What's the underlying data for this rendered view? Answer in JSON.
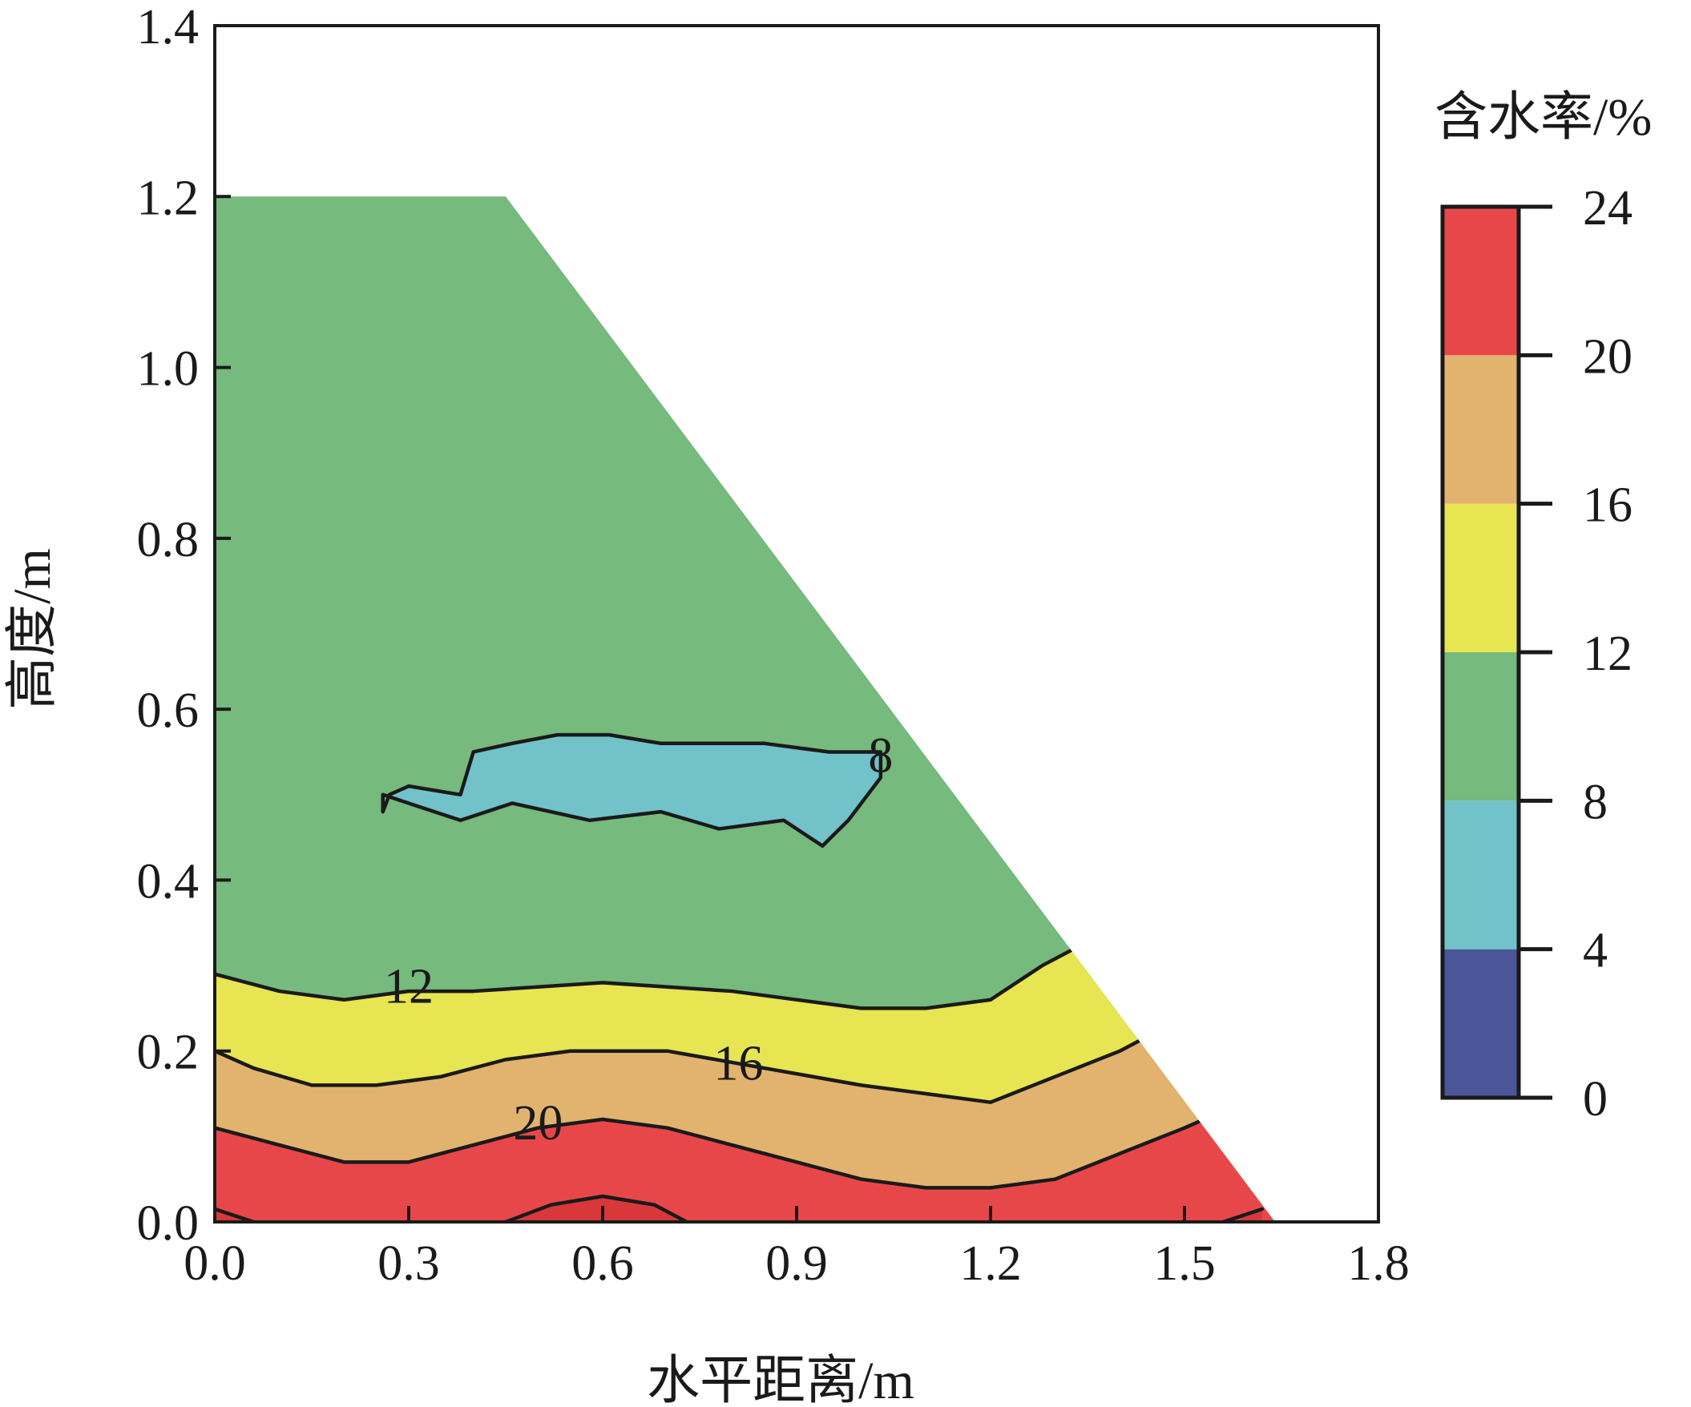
{
  "chart_data": {
    "type": "contour",
    "title": "",
    "xlabel": "水平距离/m",
    "ylabel": "高度/m",
    "xlim": [
      0.0,
      1.8
    ],
    "ylim": [
      0.0,
      1.4
    ],
    "x_ticks": [
      "0.0",
      "0.3",
      "0.6",
      "0.9",
      "1.2",
      "1.5",
      "1.8"
    ],
    "y_ticks": [
      "0.0",
      "0.2",
      "0.4",
      "0.6",
      "0.8",
      "1.0",
      "1.2",
      "1.4"
    ],
    "grid": false,
    "domain_outline": [
      [
        0.0,
        0.0
      ],
      [
        0.0,
        1.2
      ],
      [
        0.45,
        1.2
      ],
      [
        1.64,
        0.0
      ]
    ],
    "colorbar": {
      "title": "含水率/%",
      "levels": [
        0,
        4,
        8,
        12,
        16,
        20,
        24
      ],
      "tick_labels": [
        "0",
        "4",
        "8",
        "12",
        "16",
        "20",
        "24"
      ],
      "colors": [
        "#4a5697",
        "#72c2c9",
        "#76ba7d",
        "#e7e551",
        "#e2b36e",
        "#e8474a"
      ]
    },
    "contour_labels": [
      {
        "text": "8",
        "level": 8,
        "x": 1.03,
        "y": 0.54
      },
      {
        "text": "12",
        "level": 12,
        "x": 0.3,
        "y": 0.27
      },
      {
        "text": "16",
        "level": 16,
        "x": 0.81,
        "y": 0.18
      },
      {
        "text": "20",
        "level": 20,
        "x": 0.5,
        "y": 0.11
      }
    ],
    "contours": [
      {
        "level": 8,
        "points": [
          [
            0.26,
            0.48
          ],
          [
            0.27,
            0.5
          ],
          [
            0.3,
            0.51
          ],
          [
            0.38,
            0.5
          ],
          [
            0.4,
            0.55
          ],
          [
            0.46,
            0.56
          ],
          [
            0.53,
            0.57
          ],
          [
            0.61,
            0.57
          ],
          [
            0.69,
            0.56
          ],
          [
            0.77,
            0.56
          ],
          [
            0.85,
            0.56
          ],
          [
            0.95,
            0.55
          ],
          [
            1.03,
            0.55
          ],
          [
            1.03,
            0.52
          ],
          [
            0.98,
            0.47
          ],
          [
            0.94,
            0.44
          ],
          [
            0.88,
            0.47
          ],
          [
            0.78,
            0.46
          ],
          [
            0.69,
            0.48
          ],
          [
            0.58,
            0.47
          ],
          [
            0.46,
            0.49
          ],
          [
            0.38,
            0.47
          ],
          [
            0.3,
            0.49
          ],
          [
            0.26,
            0.5
          ]
        ]
      },
      {
        "level": 12,
        "points": [
          [
            0.0,
            0.29
          ],
          [
            0.05,
            0.28
          ],
          [
            0.1,
            0.27
          ],
          [
            0.2,
            0.26
          ],
          [
            0.3,
            0.27
          ],
          [
            0.4,
            0.27
          ],
          [
            0.6,
            0.28
          ],
          [
            0.8,
            0.27
          ],
          [
            1.0,
            0.25
          ],
          [
            1.1,
            0.25
          ],
          [
            1.2,
            0.26
          ],
          [
            1.28,
            0.3
          ],
          [
            1.33,
            0.32
          ]
        ]
      },
      {
        "level": 16,
        "points": [
          [
            0.0,
            0.2
          ],
          [
            0.06,
            0.18
          ],
          [
            0.15,
            0.16
          ],
          [
            0.25,
            0.16
          ],
          [
            0.35,
            0.17
          ],
          [
            0.45,
            0.19
          ],
          [
            0.55,
            0.2
          ],
          [
            0.7,
            0.2
          ],
          [
            0.85,
            0.18
          ],
          [
            1.0,
            0.16
          ],
          [
            1.1,
            0.15
          ],
          [
            1.2,
            0.14
          ],
          [
            1.3,
            0.17
          ],
          [
            1.4,
            0.2
          ],
          [
            1.45,
            0.22
          ]
        ]
      },
      {
        "level": 20,
        "points": [
          [
            0.0,
            0.11
          ],
          [
            0.1,
            0.09
          ],
          [
            0.2,
            0.07
          ],
          [
            0.3,
            0.07
          ],
          [
            0.4,
            0.09
          ],
          [
            0.5,
            0.11
          ],
          [
            0.6,
            0.12
          ],
          [
            0.7,
            0.11
          ],
          [
            0.8,
            0.09
          ],
          [
            0.9,
            0.07
          ],
          [
            1.0,
            0.05
          ],
          [
            1.1,
            0.04
          ],
          [
            1.2,
            0.04
          ],
          [
            1.3,
            0.05
          ],
          [
            1.4,
            0.08
          ],
          [
            1.5,
            0.11
          ],
          [
            1.53,
            0.12
          ]
        ]
      },
      {
        "level": 24,
        "points": [
          [
            0.0,
            0.015
          ],
          [
            0.06,
            0.0
          ]
        ]
      },
      {
        "level": 24,
        "points": [
          [
            0.45,
            0.0
          ],
          [
            0.52,
            0.02
          ],
          [
            0.6,
            0.03
          ],
          [
            0.68,
            0.02
          ],
          [
            0.73,
            0.0
          ]
        ]
      },
      {
        "level": 24,
        "points": [
          [
            1.56,
            0.0
          ],
          [
            1.62,
            0.015
          ]
        ]
      }
    ]
  }
}
